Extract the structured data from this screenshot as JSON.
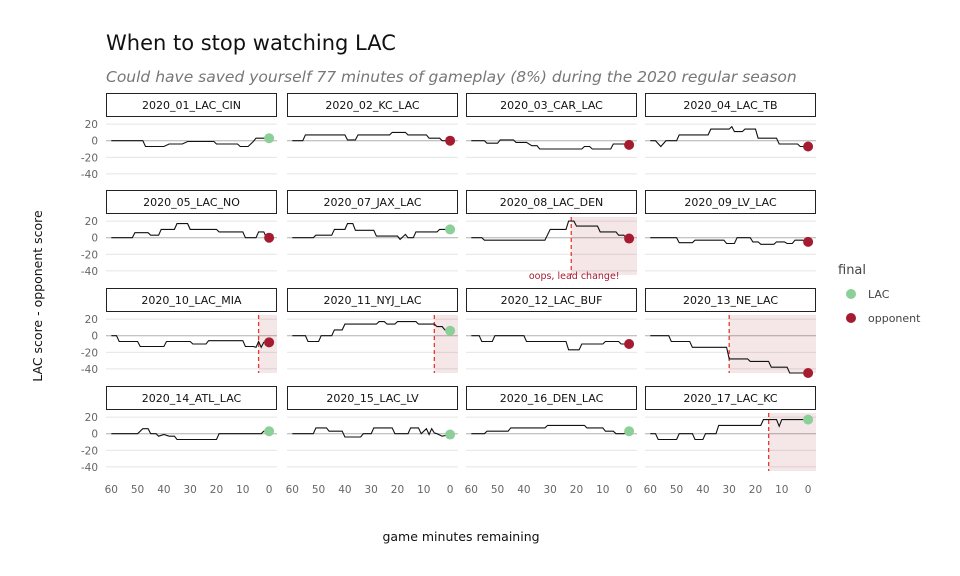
{
  "chart_data": {
    "type": "line",
    "title": "When to stop watching LAC",
    "subtitle": "Could have saved yourself 77 minutes of gameplay (8%) during the 2020 regular season",
    "xlabel": "game minutes remaining",
    "ylabel": "LAC score - opponent score",
    "x_ticks": [
      60,
      50,
      40,
      30,
      20,
      10,
      0
    ],
    "y_ticks": [
      20,
      0,
      -20,
      -40
    ],
    "xlim": [
      62,
      -3
    ],
    "ylim": [
      -45,
      25
    ],
    "legend": {
      "title": "final",
      "position": "right",
      "items": [
        {
          "label": "LAC",
          "color": "#8ccf98"
        },
        {
          "label": "opponent",
          "color": "#a51c30"
        }
      ]
    },
    "annotation": {
      "panel": "2020_08_LAC_DEN",
      "text": "oops, lead change!"
    },
    "panels": [
      {
        "name": "2020_01_LAC_CIN",
        "winner": "LAC",
        "stop": null,
        "points": [
          [
            60,
            0
          ],
          [
            48,
            0
          ],
          [
            47,
            -7
          ],
          [
            40,
            -7
          ],
          [
            38,
            -4
          ],
          [
            33,
            -4
          ],
          [
            31,
            -1
          ],
          [
            21,
            -1
          ],
          [
            20,
            -4
          ],
          [
            12,
            -4
          ],
          [
            11,
            -7
          ],
          [
            8,
            -7
          ],
          [
            6,
            -1
          ],
          [
            5,
            3
          ],
          [
            0,
            3
          ]
        ]
      },
      {
        "name": "2020_02_KC_LAC",
        "winner": "opponent",
        "stop": null,
        "points": [
          [
            60,
            0
          ],
          [
            56,
            0
          ],
          [
            55,
            7
          ],
          [
            40,
            7
          ],
          [
            39,
            1
          ],
          [
            36,
            1
          ],
          [
            35,
            7
          ],
          [
            23,
            7
          ],
          [
            22,
            10
          ],
          [
            17,
            10
          ],
          [
            16,
            7
          ],
          [
            9,
            7
          ],
          [
            8,
            3
          ],
          [
            4,
            3
          ],
          [
            3,
            0
          ],
          [
            0,
            0
          ]
        ]
      },
      {
        "name": "2020_03_CAR_LAC",
        "winner": "opponent",
        "stop": null,
        "points": [
          [
            60,
            0
          ],
          [
            55,
            0
          ],
          [
            54,
            -3
          ],
          [
            50,
            -3
          ],
          [
            49,
            1
          ],
          [
            44,
            1
          ],
          [
            43,
            -2
          ],
          [
            39,
            -2
          ],
          [
            37,
            -6
          ],
          [
            35,
            -6
          ],
          [
            34,
            -10
          ],
          [
            18,
            -10
          ],
          [
            17,
            -7
          ],
          [
            15,
            -7
          ],
          [
            14,
            -10
          ],
          [
            7,
            -10
          ],
          [
            6,
            -4
          ],
          [
            2,
            -4
          ],
          [
            0,
            -5
          ]
        ]
      },
      {
        "name": "2020_04_LAC_TB",
        "winner": "opponent",
        "stop": null,
        "points": [
          [
            60,
            0
          ],
          [
            58,
            0
          ],
          [
            56,
            -7
          ],
          [
            54,
            0
          ],
          [
            50,
            0
          ],
          [
            49,
            7
          ],
          [
            38,
            7
          ],
          [
            37,
            14
          ],
          [
            30,
            14
          ],
          [
            29,
            17
          ],
          [
            28,
            11
          ],
          [
            25,
            11
          ],
          [
            24,
            14
          ],
          [
            20,
            14
          ],
          [
            19,
            3
          ],
          [
            12,
            3
          ],
          [
            11,
            -4
          ],
          [
            4,
            -4
          ],
          [
            3,
            -7
          ],
          [
            0,
            -7
          ]
        ]
      },
      {
        "name": "2020_05_LAC_NO",
        "winner": "opponent",
        "stop": null,
        "points": [
          [
            60,
            0
          ],
          [
            52,
            0
          ],
          [
            51,
            6
          ],
          [
            46,
            6
          ],
          [
            45,
            3
          ],
          [
            42,
            3
          ],
          [
            41,
            10
          ],
          [
            36,
            10
          ],
          [
            35,
            17
          ],
          [
            31,
            17
          ],
          [
            30,
            10
          ],
          [
            20,
            10
          ],
          [
            19,
            7
          ],
          [
            10,
            7
          ],
          [
            9,
            0
          ],
          [
            5,
            0
          ],
          [
            4,
            7
          ],
          [
            2,
            7
          ],
          [
            1,
            0
          ],
          [
            0,
            0
          ]
        ]
      },
      {
        "name": "2020_07_JAX_LAC",
        "winner": "LAC",
        "stop": null,
        "points": [
          [
            60,
            0
          ],
          [
            52,
            0
          ],
          [
            51,
            3
          ],
          [
            45,
            3
          ],
          [
            44,
            10
          ],
          [
            40,
            10
          ],
          [
            39,
            17
          ],
          [
            37,
            17
          ],
          [
            36,
            9
          ],
          [
            29,
            9
          ],
          [
            28,
            2
          ],
          [
            20,
            2
          ],
          [
            19,
            -2
          ],
          [
            17,
            4
          ],
          [
            16,
            0
          ],
          [
            14,
            0
          ],
          [
            13,
            7
          ],
          [
            5,
            7
          ],
          [
            4,
            10
          ],
          [
            0,
            10
          ]
        ]
      },
      {
        "name": "2020_08_LAC_DEN",
        "winner": "opponent",
        "stop": 22,
        "points": [
          [
            60,
            0
          ],
          [
            56,
            0
          ],
          [
            55,
            -3
          ],
          [
            45,
            -3
          ],
          [
            44,
            -3
          ],
          [
            32,
            -3
          ],
          [
            30,
            10
          ],
          [
            24,
            10
          ],
          [
            23,
            20
          ],
          [
            21,
            20
          ],
          [
            20,
            14
          ],
          [
            12,
            14
          ],
          [
            11,
            7
          ],
          [
            5,
            7
          ],
          [
            4,
            3
          ],
          [
            2,
            3
          ],
          [
            1,
            -1
          ],
          [
            0,
            -1
          ]
        ]
      },
      {
        "name": "2020_09_LV_LAC",
        "winner": "opponent",
        "stop": null,
        "points": [
          [
            60,
            0
          ],
          [
            50,
            0
          ],
          [
            49,
            -6
          ],
          [
            44,
            -6
          ],
          [
            43,
            -3
          ],
          [
            32,
            -3
          ],
          [
            31,
            -7
          ],
          [
            28,
            -7
          ],
          [
            27,
            0
          ],
          [
            22,
            0
          ],
          [
            21,
            -5
          ],
          [
            19,
            -5
          ],
          [
            18,
            -8
          ],
          [
            13,
            -8
          ],
          [
            12,
            -5
          ],
          [
            9,
            -5
          ],
          [
            8,
            -7
          ],
          [
            6,
            -7
          ],
          [
            5,
            -3
          ],
          [
            2,
            -3
          ],
          [
            0,
            -5
          ]
        ]
      },
      {
        "name": "2020_10_LAC_MIA",
        "winner": "opponent",
        "stop": 4,
        "points": [
          [
            60,
            0
          ],
          [
            58,
            0
          ],
          [
            57,
            -7
          ],
          [
            50,
            -7
          ],
          [
            49,
            -13
          ],
          [
            40,
            -13
          ],
          [
            39,
            -7
          ],
          [
            30,
            -7
          ],
          [
            29,
            -10
          ],
          [
            24,
            -10
          ],
          [
            23,
            -6
          ],
          [
            10,
            -6
          ],
          [
            9,
            -13
          ],
          [
            6,
            -13
          ],
          [
            5,
            -14
          ],
          [
            4,
            -7
          ],
          [
            3,
            -14
          ],
          [
            2,
            -8
          ],
          [
            0,
            -8
          ]
        ]
      },
      {
        "name": "2020_11_NYJ_LAC",
        "winner": "LAC",
        "stop": 6,
        "points": [
          [
            60,
            0
          ],
          [
            55,
            0
          ],
          [
            54,
            -7
          ],
          [
            50,
            -7
          ],
          [
            49,
            0
          ],
          [
            45,
            0
          ],
          [
            44,
            7
          ],
          [
            41,
            7
          ],
          [
            40,
            14
          ],
          [
            28,
            14
          ],
          [
            27,
            17
          ],
          [
            25,
            17
          ],
          [
            24,
            14
          ],
          [
            21,
            14
          ],
          [
            20,
            17
          ],
          [
            13,
            17
          ],
          [
            12,
            14
          ],
          [
            6,
            14
          ],
          [
            5,
            11
          ],
          [
            3,
            11
          ],
          [
            2,
            7
          ],
          [
            0,
            6
          ]
        ]
      },
      {
        "name": "2020_12_LAC_BUF",
        "winner": "opponent",
        "stop": null,
        "points": [
          [
            60,
            0
          ],
          [
            57,
            0
          ],
          [
            56,
            -7
          ],
          [
            52,
            -7
          ],
          [
            51,
            0
          ],
          [
            40,
            0
          ],
          [
            39,
            -7
          ],
          [
            24,
            -7
          ],
          [
            23,
            -17
          ],
          [
            19,
            -17
          ],
          [
            18,
            -10
          ],
          [
            10,
            -10
          ],
          [
            9,
            -7
          ],
          [
            4,
            -7
          ],
          [
            3,
            -10
          ],
          [
            0,
            -10
          ]
        ]
      },
      {
        "name": "2020_13_NE_LAC",
        "winner": "opponent",
        "stop": 30,
        "points": [
          [
            60,
            0
          ],
          [
            53,
            0
          ],
          [
            52,
            -7
          ],
          [
            45,
            -7
          ],
          [
            44,
            -14
          ],
          [
            31,
            -14
          ],
          [
            30,
            -28
          ],
          [
            23,
            -28
          ],
          [
            22,
            -31
          ],
          [
            15,
            -31
          ],
          [
            14,
            -38
          ],
          [
            8,
            -38
          ],
          [
            7,
            -45
          ],
          [
            0,
            -45
          ]
        ]
      },
      {
        "name": "2020_14_ATL_LAC",
        "winner": "LAC",
        "stop": null,
        "points": [
          [
            60,
            0
          ],
          [
            50,
            0
          ],
          [
            48,
            6
          ],
          [
            46,
            6
          ],
          [
            45,
            0
          ],
          [
            43,
            0
          ],
          [
            42,
            -3
          ],
          [
            40,
            -1
          ],
          [
            38,
            -3
          ],
          [
            36,
            -3
          ],
          [
            35,
            -7
          ],
          [
            20,
            -7
          ],
          [
            19,
            0
          ],
          [
            3,
            0
          ],
          [
            2,
            3
          ],
          [
            0,
            3
          ]
        ]
      },
      {
        "name": "2020_15_LAC_LV",
        "winner": "LAC",
        "stop": null,
        "points": [
          [
            60,
            0
          ],
          [
            52,
            0
          ],
          [
            51,
            7
          ],
          [
            47,
            7
          ],
          [
            46,
            3
          ],
          [
            41,
            3
          ],
          [
            40,
            -4
          ],
          [
            34,
            -4
          ],
          [
            33,
            0
          ],
          [
            30,
            0
          ],
          [
            29,
            7
          ],
          [
            22,
            7
          ],
          [
            21,
            0
          ],
          [
            16,
            0
          ],
          [
            15,
            7
          ],
          [
            12,
            7
          ],
          [
            11,
            0
          ],
          [
            9,
            6
          ],
          [
            8,
            -1
          ],
          [
            7,
            6
          ],
          [
            6,
            1
          ],
          [
            5,
            0
          ],
          [
            3,
            -3
          ],
          [
            0,
            -1
          ]
        ]
      },
      {
        "name": "2020_16_DEN_LAC",
        "winner": "LAC",
        "stop": null,
        "points": [
          [
            60,
            0
          ],
          [
            55,
            0
          ],
          [
            54,
            3
          ],
          [
            46,
            3
          ],
          [
            45,
            7
          ],
          [
            32,
            7
          ],
          [
            31,
            10
          ],
          [
            17,
            10
          ],
          [
            16,
            7
          ],
          [
            10,
            7
          ],
          [
            9,
            3
          ],
          [
            6,
            3
          ],
          [
            5,
            0
          ],
          [
            2,
            0
          ],
          [
            0,
            3
          ]
        ]
      },
      {
        "name": "2020_17_LAC_KC",
        "winner": "LAC",
        "stop": 15,
        "points": [
          [
            60,
            0
          ],
          [
            58,
            0
          ],
          [
            57,
            -7
          ],
          [
            50,
            -7
          ],
          [
            49,
            0
          ],
          [
            44,
            0
          ],
          [
            43,
            -7
          ],
          [
            40,
            -7
          ],
          [
            39,
            0
          ],
          [
            35,
            0
          ],
          [
            34,
            10
          ],
          [
            18,
            10
          ],
          [
            17,
            17
          ],
          [
            12,
            17
          ],
          [
            11,
            9
          ],
          [
            10,
            17
          ],
          [
            4,
            17
          ],
          [
            3,
            17
          ],
          [
            0,
            17
          ]
        ]
      }
    ]
  }
}
